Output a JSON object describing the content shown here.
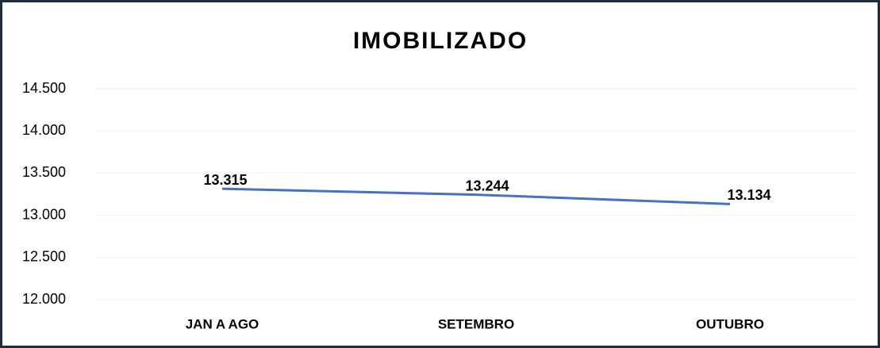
{
  "chart_data": {
    "type": "line",
    "title": "IMOBILIZADO",
    "categories": [
      "JAN A AGO",
      "SETEMBRO",
      "OUTUBRO"
    ],
    "series": [
      {
        "name": "IMOBILIZADO",
        "color": "#4472c4",
        "values": [
          13315,
          13244,
          13134
        ],
        "value_labels": [
          "13.315",
          "13.244",
          "13.134"
        ]
      }
    ],
    "ylim": [
      12000,
      14500
    ],
    "yticks": [
      {
        "value": 12000,
        "label": "12.000"
      },
      {
        "value": 12500,
        "label": "12.500"
      },
      {
        "value": 13000,
        "label": "13.000"
      },
      {
        "value": 13500,
        "label": "13.500"
      },
      {
        "value": 14000,
        "label": "14.000"
      },
      {
        "value": 14500,
        "label": "14.500"
      }
    ],
    "grid": true
  }
}
